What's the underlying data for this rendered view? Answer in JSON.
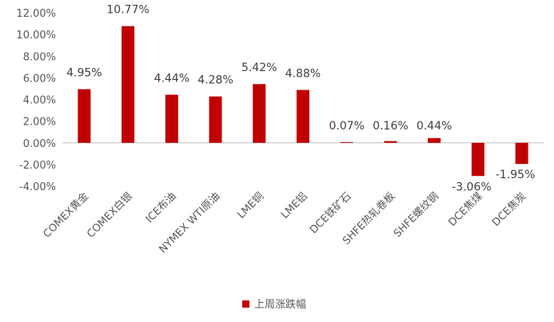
{
  "chart_data": {
    "type": "bar",
    "categories": [
      "COMEX黄金",
      "COMEX白银",
      "ICE布油",
      "NYMEX WTI原油",
      "LME铜",
      "LME铝",
      "DCE铁矿石",
      "SHFE热轧卷板",
      "SHFE螺纹钢",
      "DCE焦煤",
      "DCE焦炭"
    ],
    "series": [
      {
        "name": "上周涨跌幅",
        "values": [
          4.95,
          10.77,
          4.44,
          4.28,
          5.42,
          4.88,
          0.07,
          0.16,
          0.44,
          -3.06,
          -1.95
        ],
        "data_labels": [
          "4.95%",
          "10.77%",
          "4.44%",
          "4.28%",
          "5.42%",
          "4.88%",
          "0.07%",
          "0.16%",
          "0.44%",
          "-3.06%",
          "-1.95%"
        ]
      }
    ],
    "y_ticks": [
      "12.00%",
      "10.00%",
      "8.00%",
      "6.00%",
      "4.00%",
      "2.00%",
      "0.00%",
      "-2.00%",
      "-4.00%"
    ],
    "ylim": [
      -4,
      12
    ],
    "y_step": 2,
    "grid": false,
    "legend_position": "bottom",
    "colors": {
      "bar": "#C00000",
      "axis": "#BFBFBF",
      "text": "#595959"
    }
  }
}
